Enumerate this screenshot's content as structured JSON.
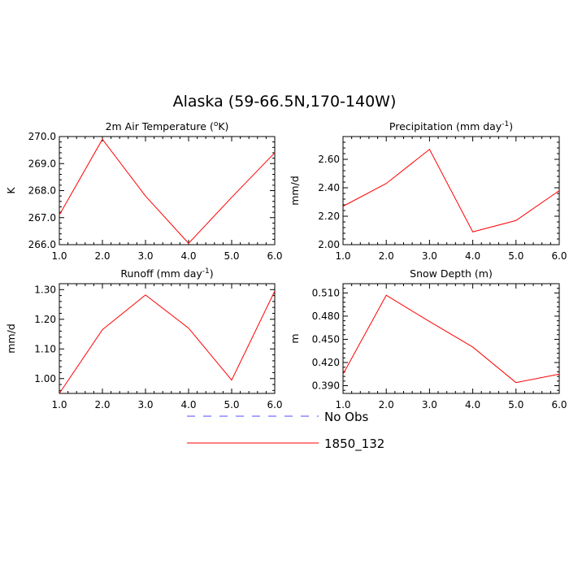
{
  "title": "Alaska (59-66.5N,170-140W)",
  "legend": {
    "entries": [
      {
        "name": "No Obs",
        "color": "#4b4bff",
        "dashed": true
      },
      {
        "name": "1850_132",
        "color": "#ff0000",
        "dashed": false
      }
    ]
  },
  "chart_data": [
    {
      "type": "line",
      "title": "2m Air Temperature (°K)",
      "title_main": "2m Air Temperature (",
      "title_sup": "o",
      "title_end": "K)",
      "ylabel": "K",
      "x": [
        1,
        2,
        3,
        4,
        5,
        6
      ],
      "xlim": [
        1,
        6
      ],
      "ylim": [
        266.0,
        270.0
      ],
      "xticks": [
        "1.0",
        "2.0",
        "3.0",
        "4.0",
        "5.0",
        "6.0"
      ],
      "yticks": [
        266.0,
        267.0,
        268.0,
        269.0,
        270.0
      ],
      "ytick_labels": [
        "266.0",
        "267.0",
        "268.0",
        "269.0",
        "270.0"
      ],
      "series": [
        {
          "name": "1850_132",
          "color": "#ff0000",
          "values": [
            267.1,
            269.9,
            267.8,
            266.05,
            267.75,
            269.4
          ]
        }
      ]
    },
    {
      "type": "line",
      "title": "Precipitation (mm day-1)",
      "title_main": "Precipitation (mm day",
      "title_sup": "-1",
      "title_end": ")",
      "ylabel": "mm/d",
      "x": [
        1,
        2,
        3,
        4,
        5,
        6
      ],
      "xlim": [
        1,
        6
      ],
      "ylim": [
        2.0,
        2.76
      ],
      "xticks": [
        "1.0",
        "2.0",
        "3.0",
        "4.0",
        "5.0",
        "6.0"
      ],
      "yticks": [
        2.0,
        2.2,
        2.4,
        2.6
      ],
      "ytick_labels": [
        "2.00",
        "2.20",
        "2.40",
        "2.60"
      ],
      "series": [
        {
          "name": "1850_132",
          "color": "#ff0000",
          "values": [
            2.27,
            2.43,
            2.67,
            2.09,
            2.17,
            2.38
          ]
        }
      ]
    },
    {
      "type": "line",
      "title": "Runoff (mm day-1)",
      "title_main": "Runoff (mm day",
      "title_sup": "-1",
      "title_end": ")",
      "ylabel": "mm/d",
      "x": [
        1,
        2,
        3,
        4,
        5,
        6
      ],
      "xlim": [
        1,
        6
      ],
      "ylim": [
        0.95,
        1.32
      ],
      "xticks": [
        "1.0",
        "2.0",
        "3.0",
        "4.0",
        "5.0",
        "6.0"
      ],
      "yticks": [
        1.0,
        1.1,
        1.2,
        1.3
      ],
      "ytick_labels": [
        "1.00",
        "1.10",
        "1.20",
        "1.30"
      ],
      "series": [
        {
          "name": "1850_132",
          "color": "#ff0000",
          "values": [
            0.95,
            1.165,
            1.282,
            1.17,
            0.995,
            1.295
          ]
        }
      ]
    },
    {
      "type": "line",
      "title": "Snow Depth (m)",
      "title_main": "Snow Depth (m)",
      "title_sup": "",
      "title_end": "",
      "ylabel": "m",
      "x": [
        1,
        2,
        3,
        4,
        5,
        6
      ],
      "xlim": [
        1,
        6
      ],
      "ylim": [
        0.38,
        0.522
      ],
      "xticks": [
        "1.0",
        "2.0",
        "3.0",
        "4.0",
        "5.0",
        "6.0"
      ],
      "yticks": [
        0.39,
        0.42,
        0.45,
        0.48,
        0.51
      ],
      "ytick_labels": [
        "0.390",
        "0.420",
        "0.450",
        "0.480",
        "0.510"
      ],
      "series": [
        {
          "name": "1850_132",
          "color": "#ff0000",
          "values": [
            0.405,
            0.507,
            0.473,
            0.44,
            0.394,
            0.405
          ]
        }
      ]
    }
  ]
}
